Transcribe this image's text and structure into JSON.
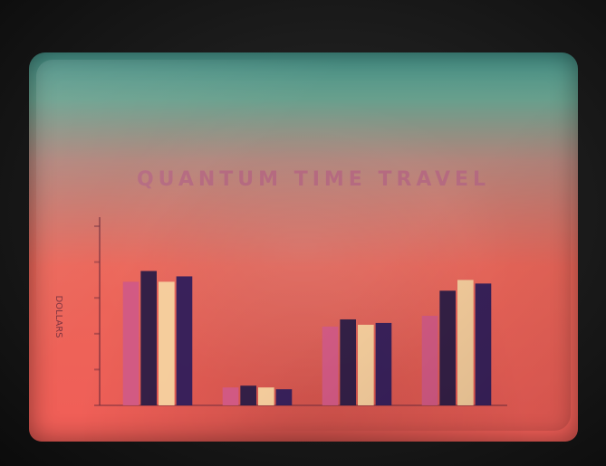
{
  "header": {
    "items": [
      {
        "line1": "",
        "line2": ""
      },
      {
        "line1": "",
        "line2": ""
      },
      {
        "line1": "",
        "line2": ""
      }
    ]
  },
  "chart_data": {
    "type": "bar",
    "title": "QUANTUM TIME TRAVEL",
    "subtitle": "",
    "xlabel": "",
    "ylabel": "DOLLARS",
    "ylim": [
      0,
      10
    ],
    "categories": [
      "",
      "",
      "",
      ""
    ],
    "series": [
      {
        "values": [
          6.9,
          1.0,
          4.4,
          5.0
        ],
        "color": "#d15a86"
      },
      {
        "values": [
          7.5,
          1.1,
          4.8,
          6.4
        ],
        "color": "#2a1c46"
      },
      {
        "values": [
          6.9,
          1.0,
          4.5,
          7.0
        ],
        "color": "#f5d3a0"
      },
      {
        "values": [
          7.2,
          0.9,
          4.6,
          6.8
        ],
        "color": "#2f1d5b"
      }
    ],
    "legend": "bottom",
    "grid": false
  },
  "colors": {
    "screen_top": "#46968c",
    "screen_mid": "#f26a5c",
    "screen_bottom": "#f55f58",
    "title": "#b56a80",
    "axis": "#6a2a3a"
  }
}
